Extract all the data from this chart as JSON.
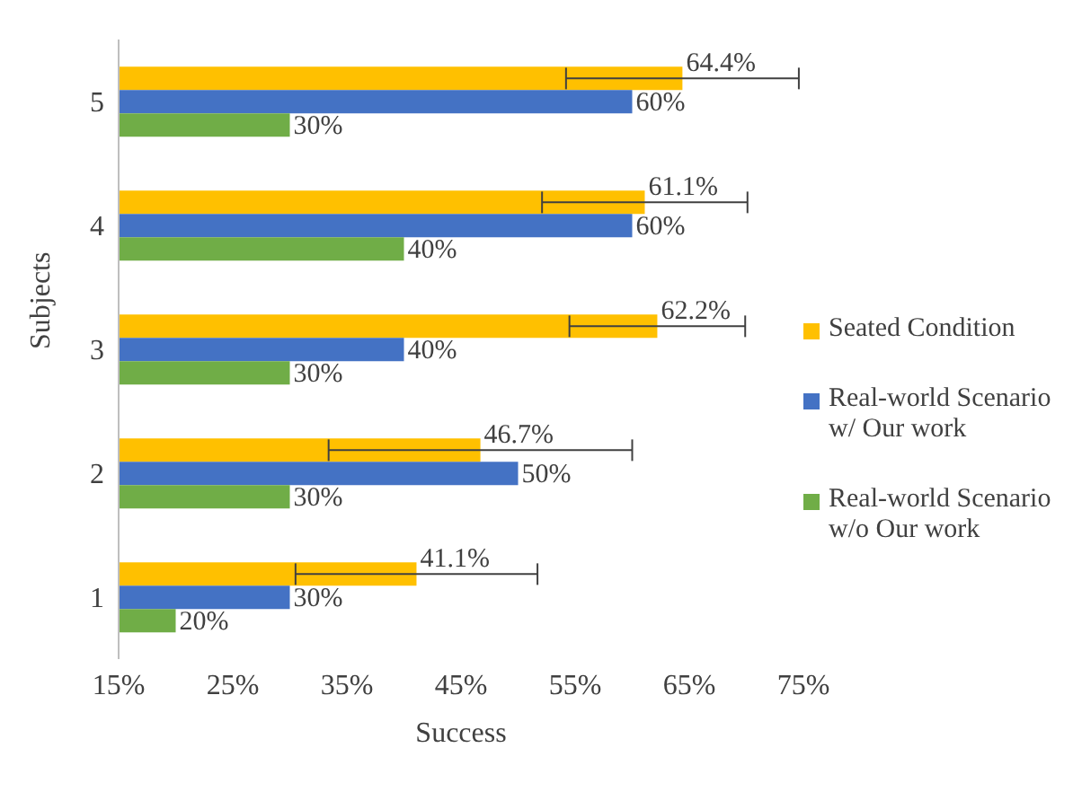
{
  "chart_data": {
    "type": "bar",
    "orientation": "horizontal",
    "xlabel": "Success",
    "ylabel": "Subjects",
    "categories": [
      "5",
      "4",
      "3",
      "2",
      "1"
    ],
    "series": [
      {
        "name": "Seated Condition",
        "color": "#ffc000",
        "values": [
          64.4,
          61.1,
          62.2,
          46.7,
          41.1
        ],
        "errors": [
          10.2,
          9,
          7.7,
          13.3,
          10.6
        ],
        "value_labels": [
          "64.4%",
          "61.1%",
          "62.2%",
          "46.7%",
          "41.1%"
        ]
      },
      {
        "name": "Real-world Scenario w/ Our work",
        "color": "#4472c4",
        "values": [
          60,
          60,
          40,
          50,
          30
        ],
        "value_labels": [
          "60%",
          "60%",
          "40%",
          "50%",
          "30%"
        ]
      },
      {
        "name": "Real-world Scenario w/o Our work",
        "color": "#70ad47",
        "values": [
          30,
          40,
          30,
          30,
          20
        ],
        "value_labels": [
          "30%",
          "40%",
          "30%",
          "30%",
          "20%"
        ]
      }
    ],
    "xlim": [
      15,
      75
    ],
    "xticks": [
      {
        "value": 15,
        "label": "15%"
      },
      {
        "value": 25,
        "label": "25%"
      },
      {
        "value": 35,
        "label": "35%"
      },
      {
        "value": 45,
        "label": "45%"
      },
      {
        "value": 55,
        "label": "55%"
      },
      {
        "value": 65,
        "label": "65%"
      },
      {
        "value": 75,
        "label": "75%"
      }
    ],
    "grid": false,
    "legend": "right"
  }
}
